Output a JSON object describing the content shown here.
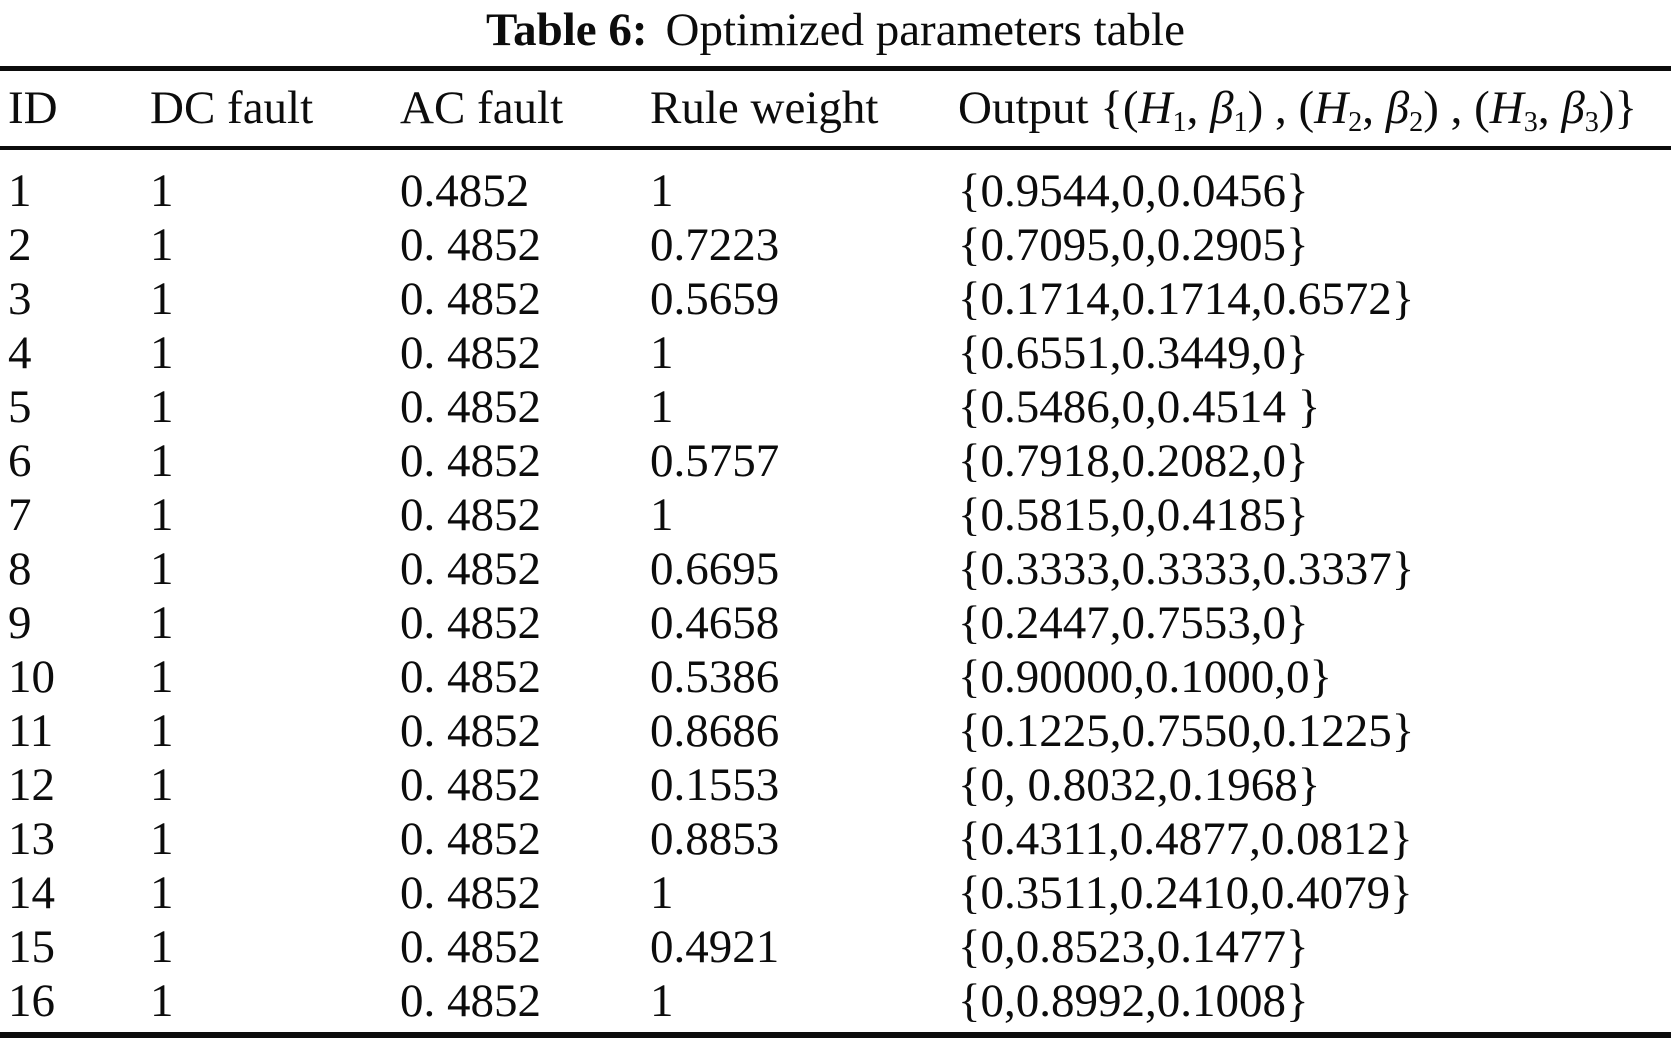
{
  "title": {
    "label": "Table 6:",
    "text": "Optimized parameters table"
  },
  "colors": {
    "text": "#0c0c0c",
    "rule": "#0c0c0c",
    "background": "#ffffff"
  },
  "table": {
    "headers": {
      "id": "ID",
      "dc_fault": "DC fault",
      "ac_fault": "AC fault",
      "rule_weight": "Rule weight"
    },
    "output_header": {
      "label": "Output",
      "open": " {(",
      "h": "H",
      "beta": "β",
      "subs": {
        "s1": "1",
        "s2": "2",
        "s3": "3"
      },
      "comma": ", ",
      "sep": ") , (",
      "close": ")}"
    },
    "rows": [
      {
        "id": "1",
        "dc": "1",
        "ac": "0.4852",
        "rule": "1",
        "output": "{0.9544,0,0.0456}"
      },
      {
        "id": "2",
        "dc": "1",
        "ac": "0. 4852",
        "rule": "0.7223",
        "output": "{0.7095,0,0.2905}"
      },
      {
        "id": "3",
        "dc": "1",
        "ac": "0. 4852",
        "rule": "0.5659",
        "output": "{0.1714,0.1714,0.6572}"
      },
      {
        "id": "4",
        "dc": "1",
        "ac": "0. 4852",
        "rule": "1",
        "output": "{0.6551,0.3449,0}"
      },
      {
        "id": "5",
        "dc": "1",
        "ac": "0. 4852",
        "rule": "1",
        "output": "{0.5486,0,0.4514 }"
      },
      {
        "id": "6",
        "dc": "1",
        "ac": "0. 4852",
        "rule": "0.5757",
        "output": "{0.7918,0.2082,0}"
      },
      {
        "id": "7",
        "dc": "1",
        "ac": "0. 4852",
        "rule": "1",
        "output": "{0.5815,0,0.4185}"
      },
      {
        "id": "8",
        "dc": "1",
        "ac": "0. 4852",
        "rule": "0.6695",
        "output": "{0.3333,0.3333,0.3337}"
      },
      {
        "id": "9",
        "dc": "1",
        "ac": "0. 4852",
        "rule": "0.4658",
        "output": "{0.2447,0.7553,0}"
      },
      {
        "id": "10",
        "dc": "1",
        "ac": "0. 4852",
        "rule": "0.5386",
        "output": "{0.90000,0.1000,0}"
      },
      {
        "id": "11",
        "dc": "1",
        "ac": "0. 4852",
        "rule": "0.8686",
        "output": "{0.1225,0.7550,0.1225}"
      },
      {
        "id": "12",
        "dc": "1",
        "ac": "0. 4852",
        "rule": "0.1553",
        "output": "{0, 0.8032,0.1968}"
      },
      {
        "id": "13",
        "dc": "1",
        "ac": "0. 4852",
        "rule": "0.8853",
        "output": "{0.4311,0.4877,0.0812}"
      },
      {
        "id": "14",
        "dc": "1",
        "ac": "0. 4852",
        "rule": "1",
        "output": "{0.3511,0.2410,0.4079}"
      },
      {
        "id": "15",
        "dc": "1",
        "ac": "0. 4852",
        "rule": "0.4921",
        "output": "{0,0.8523,0.1477}"
      },
      {
        "id": "16",
        "dc": "1",
        "ac": "0. 4852",
        "rule": "1",
        "output": "{0,0.8992,0.1008}"
      }
    ]
  }
}
